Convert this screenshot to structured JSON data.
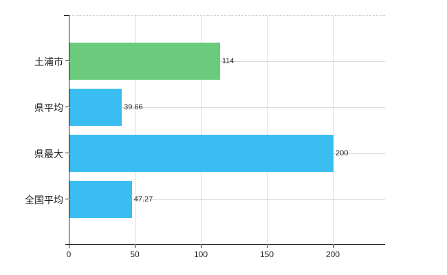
{
  "chart_data": {
    "type": "bar",
    "orientation": "horizontal",
    "title": "",
    "xlabel": "",
    "ylabel": "",
    "categories": [
      "土浦市",
      "県平均",
      "県最大",
      "全国平均"
    ],
    "values": [
      114,
      39.66,
      200,
      47.27
    ],
    "value_labels": [
      "114",
      "39.66",
      "200",
      "47.27"
    ],
    "series": [
      {
        "name": "",
        "values": [
          114,
          39.66,
          200,
          47.27
        ]
      }
    ],
    "bar_colors": [
      "#6bcb7c",
      "#3abdf0",
      "#3abdf0",
      "#3abdf0"
    ],
    "x_ticks": [
      0,
      50,
      100,
      150,
      200
    ],
    "x_tick_labels": [
      "0",
      "50",
      "100",
      "150",
      "200"
    ],
    "xlim": [
      0,
      240
    ],
    "grid": true,
    "legend_position": "none",
    "top_border_style": "dashed"
  },
  "colors": {
    "background": "#ffffff",
    "axis": "#1c1c1c",
    "grid": "#dadada",
    "text": "#222222",
    "bar_green": "#6bcb7c",
    "bar_blue": "#3abdf0"
  }
}
